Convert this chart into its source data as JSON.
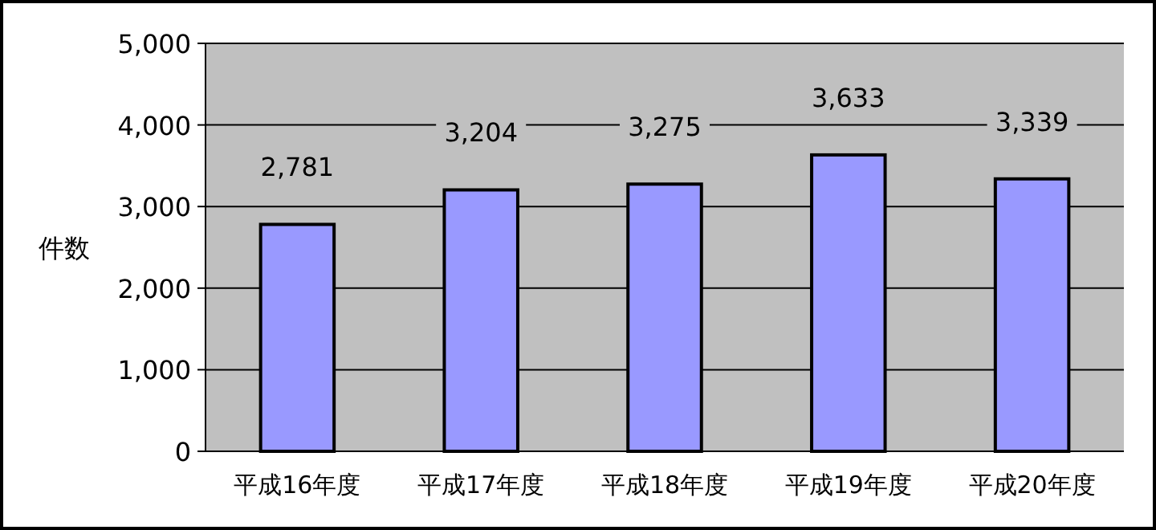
{
  "chart_data": {
    "type": "bar",
    "ylabel": "件数",
    "categories": [
      "平成16年度",
      "平成17年度",
      "平成18年度",
      "平成19年度",
      "平成20年度"
    ],
    "values": [
      2781,
      3204,
      3275,
      3633,
      3339
    ],
    "value_labels": [
      "2,781",
      "3,204",
      "3,275",
      "3,633",
      "3,339"
    ],
    "color": "#9999ff",
    "ylim": [
      0,
      5000
    ],
    "yticks": [
      {
        "value": 0,
        "label": "0"
      },
      {
        "value": 1000,
        "label": "1,000"
      },
      {
        "value": 2000,
        "label": "2,000"
      },
      {
        "value": 3000,
        "label": "3,000"
      },
      {
        "value": 4000,
        "label": "4,000"
      },
      {
        "value": 5000,
        "label": "5,000"
      }
    ],
    "grid": "y"
  }
}
